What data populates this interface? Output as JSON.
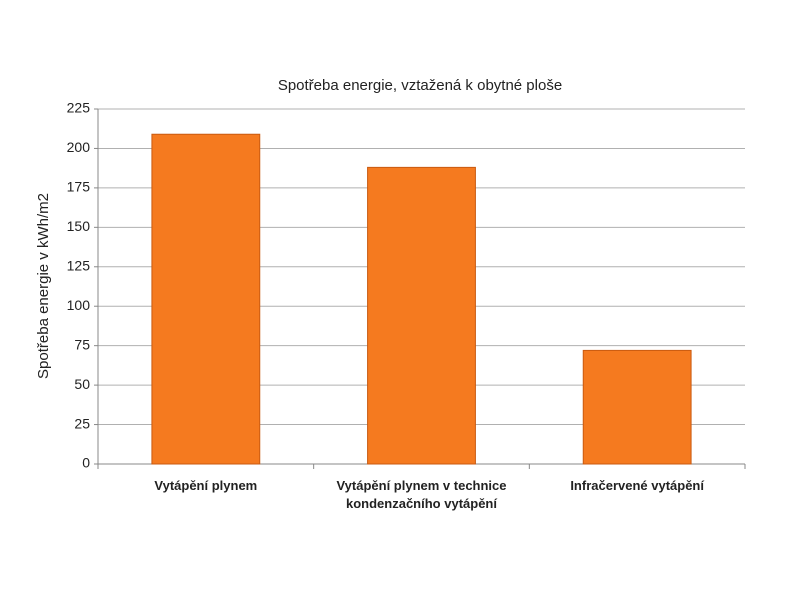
{
  "chart_data": {
    "type": "bar",
    "title": "Spotřeba energie, vztažená k obytné ploše",
    "y_label": "Spotřeba energie v kWh/m2",
    "categories": [
      "Vytápění plynem",
      "Vytápění plynem v technice kondenzačního vytápění",
      "Infračervené vytápění"
    ],
    "values": [
      209,
      188,
      72
    ],
    "color": "#f57a1f",
    "ylim": [
      0,
      225
    ],
    "yticks": [
      0,
      25,
      50,
      75,
      100,
      125,
      150,
      175,
      200,
      225
    ],
    "grid": true
  }
}
